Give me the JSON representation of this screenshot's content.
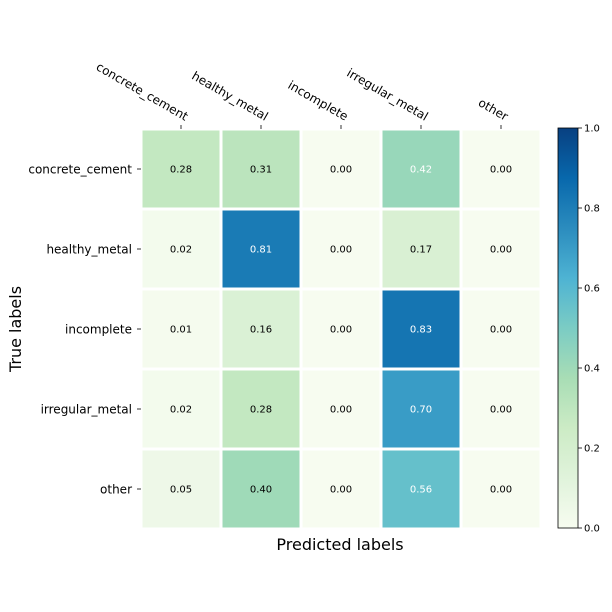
{
  "chart_data": {
    "type": "heatmap",
    "xlabel": "Predicted labels",
    "ylabel": "True labels",
    "x_categories": [
      "concrete_cement",
      "healthy_metal",
      "incomplete",
      "irregular_metal",
      "other"
    ],
    "y_categories": [
      "concrete_cement",
      "healthy_metal",
      "incomplete",
      "irregular_metal",
      "other"
    ],
    "values": [
      [
        0.28,
        0.31,
        0.0,
        0.42,
        0.0
      ],
      [
        0.02,
        0.81,
        0.0,
        0.17,
        0.0
      ],
      [
        0.01,
        0.16,
        0.0,
        0.83,
        0.0
      ],
      [
        0.02,
        0.28,
        0.0,
        0.7,
        0.0
      ],
      [
        0.05,
        0.4,
        0.0,
        0.56,
        0.0
      ]
    ],
    "value_labels": [
      [
        "0.28",
        "0.31",
        "0.00",
        "0.42",
        "0.00"
      ],
      [
        "0.02",
        "0.81",
        "0.00",
        "0.17",
        "0.00"
      ],
      [
        "0.01",
        "0.16",
        "0.00",
        "0.83",
        "0.00"
      ],
      [
        "0.02",
        "0.28",
        "0.00",
        "0.70",
        "0.00"
      ],
      [
        "0.05",
        "0.40",
        "0.00",
        "0.56",
        "0.00"
      ]
    ],
    "colormap": "GnBu",
    "colorbar": {
      "range": [
        0.0,
        1.0
      ],
      "ticks": [
        "0.0",
        "0.2",
        "0.4",
        "0.6",
        "0.8",
        "1.0"
      ],
      "tick_values": [
        0.0,
        0.2,
        0.4,
        0.6,
        0.8,
        1.0
      ]
    },
    "x_tick_position": "top",
    "grid": false,
    "colors": {
      "cell_gap": "#ffffff",
      "text_dark": "#000000",
      "text_light": "#ffffff"
    }
  }
}
